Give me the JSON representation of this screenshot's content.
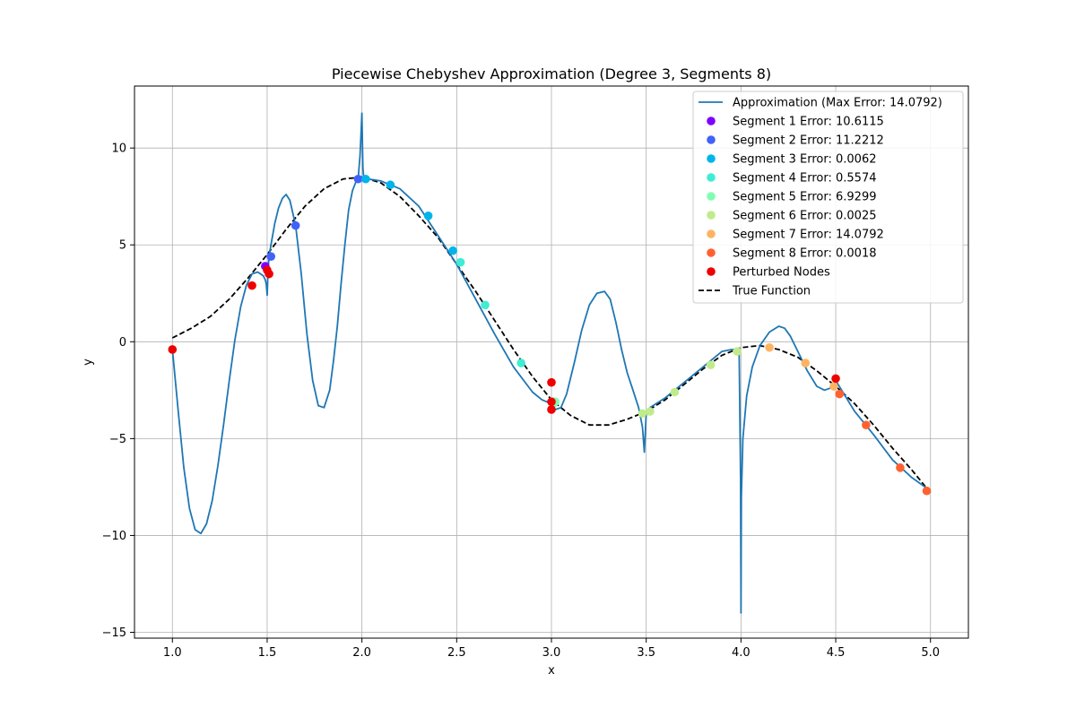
{
  "chart_data": {
    "type": "line",
    "title": "Piecewise Chebyshev Approximation (Degree 3, Segments 8)",
    "xlabel": "x",
    "ylabel": "y",
    "xlim": [
      0.8,
      5.2
    ],
    "ylim": [
      -15.3,
      13.2
    ],
    "xticks": [
      1.0,
      1.5,
      2.0,
      2.5,
      3.0,
      3.5,
      4.0,
      4.5,
      5.0
    ],
    "xtick_labels": [
      "1.0",
      "1.5",
      "2.0",
      "2.5",
      "3.0",
      "3.5",
      "4.0",
      "4.5",
      "5.0"
    ],
    "yticks": [
      -15,
      -10,
      -5,
      0,
      5,
      10
    ],
    "ytick_labels": [
      "−15",
      "−10",
      "−5",
      "0",
      "5",
      "10"
    ],
    "grid": true,
    "legend_position": "top-right",
    "approximation": {
      "name": "Approximation (Max Error: 14.0792)",
      "color": "#1f77b4",
      "x": [
        1.0,
        1.03,
        1.06,
        1.09,
        1.12,
        1.15,
        1.18,
        1.21,
        1.24,
        1.27,
        1.3,
        1.33,
        1.36,
        1.39,
        1.42,
        1.45,
        1.48,
        1.49,
        1.495,
        1.5,
        1.505,
        1.51,
        1.52,
        1.54,
        1.56,
        1.58,
        1.6,
        1.62,
        1.65,
        1.68,
        1.71,
        1.74,
        1.77,
        1.8,
        1.83,
        1.85,
        1.87,
        1.89,
        1.91,
        1.93,
        1.95,
        1.97,
        1.98,
        1.99,
        1.995,
        2.0,
        2.005,
        2.01,
        2.03,
        2.1,
        2.2,
        2.3,
        2.4,
        2.5,
        2.6,
        2.7,
        2.8,
        2.9,
        2.95,
        3.0,
        3.02,
        3.05,
        3.08,
        3.12,
        3.16,
        3.2,
        3.24,
        3.28,
        3.31,
        3.34,
        3.37,
        3.4,
        3.43,
        3.46,
        3.48,
        3.49,
        3.5,
        3.505,
        3.52,
        3.6,
        3.7,
        3.8,
        3.9,
        3.95,
        3.99,
        3.998,
        4.0,
        4.002,
        4.01,
        4.03,
        4.06,
        4.1,
        4.15,
        4.2,
        4.23,
        4.26,
        4.3,
        4.35,
        4.4,
        4.44,
        4.47,
        4.5,
        4.55,
        4.6,
        4.7,
        4.8,
        4.9,
        5.0
      ],
      "y": [
        -0.4,
        -3.5,
        -6.5,
        -8.6,
        -9.7,
        -9.9,
        -9.4,
        -8.2,
        -6.4,
        -4.3,
        -2.0,
        0.1,
        1.8,
        2.9,
        3.5,
        3.6,
        3.4,
        3.2,
        3.0,
        2.4,
        3.8,
        4.4,
        5.0,
        6.1,
        6.9,
        7.4,
        7.6,
        7.3,
        6.0,
        3.5,
        0.4,
        -2.0,
        -3.3,
        -3.4,
        -2.5,
        -1.0,
        0.8,
        3.0,
        5.0,
        6.8,
        7.8,
        8.3,
        8.4,
        9.6,
        10.7,
        11.8,
        9.0,
        8.4,
        8.4,
        8.3,
        7.9,
        7.0,
        5.5,
        4.0,
        2.2,
        0.4,
        -1.3,
        -2.6,
        -3.0,
        -3.2,
        -3.5,
        -3.4,
        -2.7,
        -1.1,
        0.6,
        1.9,
        2.5,
        2.6,
        2.2,
        1.0,
        -0.4,
        -1.6,
        -2.5,
        -3.4,
        -4.4,
        -5.7,
        -3.7,
        -3.6,
        -3.4,
        -2.9,
        -2.1,
        -1.3,
        -0.5,
        -0.4,
        -0.4,
        -7.0,
        -14.0,
        -8.0,
        -5.0,
        -2.8,
        -1.3,
        -0.2,
        0.5,
        0.8,
        0.7,
        0.3,
        -0.5,
        -1.5,
        -2.3,
        -2.5,
        -2.4,
        -2.0,
        -2.8,
        -3.6,
        -4.8,
        -6.1,
        -7.0,
        -7.7
      ]
    },
    "true_function": {
      "name": "True Function",
      "color": "#000000",
      "style": "dashed",
      "x": [
        1.0,
        1.1,
        1.2,
        1.3,
        1.4,
        1.5,
        1.6,
        1.7,
        1.8,
        1.9,
        2.0,
        2.1,
        2.2,
        2.3,
        2.4,
        2.5,
        2.6,
        2.7,
        2.8,
        2.9,
        3.0,
        3.1,
        3.2,
        3.3,
        3.4,
        3.5,
        3.6,
        3.7,
        3.8,
        3.9,
        4.0,
        4.1,
        4.2,
        4.3,
        4.4,
        4.5,
        4.6,
        4.7,
        4.8,
        4.9,
        5.0
      ],
      "y": [
        0.2,
        0.7,
        1.3,
        2.2,
        3.3,
        4.5,
        5.8,
        7.0,
        7.9,
        8.4,
        8.5,
        8.2,
        7.5,
        6.5,
        5.4,
        4.0,
        2.6,
        1.1,
        -0.4,
        -1.8,
        -3.0,
        -3.8,
        -4.3,
        -4.3,
        -4.0,
        -3.6,
        -3.0,
        -2.2,
        -1.4,
        -0.7,
        -0.3,
        -0.2,
        -0.4,
        -0.8,
        -1.5,
        -2.3,
        -3.2,
        -4.3,
        -5.5,
        -6.6,
        -7.8
      ]
    },
    "segments": [
      {
        "name": "Segment 1 Error: 10.6115",
        "color": "#7f00ff",
        "x": [
          1.49
        ],
        "y": [
          3.9
        ]
      },
      {
        "name": "Segment 2 Error: 11.2212",
        "color": "#4062fa",
        "x": [
          1.52,
          1.65,
          1.98
        ],
        "y": [
          4.4,
          6.0,
          8.4
        ]
      },
      {
        "name": "Segment 3 Error: 0.0062",
        "color": "#00b5eb",
        "x": [
          2.02,
          2.15,
          2.35,
          2.48
        ],
        "y": [
          8.4,
          8.1,
          6.5,
          4.7
        ]
      },
      {
        "name": "Segment 4 Error: 0.5574",
        "color": "#40ecd4",
        "x": [
          2.52,
          2.65,
          2.84,
          3.01
        ],
        "y": [
          4.1,
          1.9,
          -1.1,
          -3.1
        ]
      },
      {
        "name": "Segment 5 Error: 6.9299",
        "color": "#80feb3",
        "x": [
          3.01,
          3.02
        ],
        "y": [
          -3.2,
          -3.1
        ]
      },
      {
        "name": "Segment 6 Error: 0.0025",
        "color": "#c1eb8a",
        "x": [
          3.48,
          3.52,
          3.65,
          3.84,
          3.98
        ],
        "y": [
          -3.7,
          -3.6,
          -2.6,
          -1.2,
          -0.5
        ]
      },
      {
        "name": "Segment 7 Error: 14.0792",
        "color": "#fdb462",
        "x": [
          4.15,
          4.34,
          4.49
        ],
        "y": [
          -0.3,
          -1.1,
          -2.3
        ]
      },
      {
        "name": "Segment 8 Error: 0.0018",
        "color": "#ff6230",
        "x": [
          4.52,
          4.66,
          4.84,
          4.98
        ],
        "y": [
          -2.7,
          -4.3,
          -6.5,
          -7.7
        ]
      }
    ],
    "perturbed_nodes": {
      "name": "Perturbed Nodes",
      "color": "#ee0000",
      "x": [
        1.0,
        1.42,
        1.5,
        1.51,
        3.0,
        3.0,
        3.0,
        4.5
      ],
      "y": [
        -0.4,
        2.9,
        3.7,
        3.5,
        -2.1,
        -3.1,
        -3.5,
        -1.9
      ]
    }
  }
}
